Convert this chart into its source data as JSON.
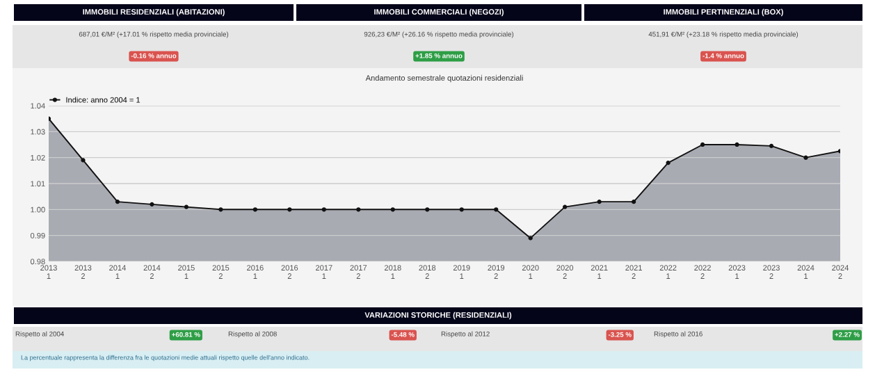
{
  "chart_data": {
    "type": "area",
    "title": "Andamento semestrale quotazioni residenziali",
    "categories": [
      "2013\n1",
      "2013\n2",
      "2014\n1",
      "2014\n2",
      "2015\n1",
      "2015\n2",
      "2016\n1",
      "2016\n2",
      "2017\n1",
      "2017\n2",
      "2018\n1",
      "2018\n2",
      "2019\n1",
      "2019\n2",
      "2020\n1",
      "2020\n2",
      "2021\n1",
      "2021\n2",
      "2022\n1",
      "2022\n2",
      "2023\n1",
      "2023\n2",
      "2024\n1",
      "2024\n2"
    ],
    "series": [
      {
        "name": "Indice: anno 2004 = 1",
        "color": "#a9abb3",
        "values": [
          1.035,
          1.019,
          1.003,
          1.002,
          1.001,
          1.0,
          1.0,
          1.0,
          1.0,
          1.0,
          1.0,
          1.0,
          1.0,
          1.0,
          0.989,
          1.001,
          1.003,
          1.003,
          1.018,
          1.025,
          1.025,
          1.0245,
          1.02,
          1.0225
        ]
      }
    ],
    "ylim": [
      0.98,
      1.04
    ],
    "yticks": [
      {
        "value": 0.98,
        "label": "0.98"
      },
      {
        "value": 0.99,
        "label": "0.99"
      },
      {
        "value": 1.0,
        "label": "1.00"
      },
      {
        "value": 1.01,
        "label": "1.01"
      },
      {
        "value": 1.02,
        "label": "1.02"
      },
      {
        "value": 1.03,
        "label": "1.03"
      },
      {
        "value": 1.04,
        "label": "1.04"
      }
    ],
    "grid": "y",
    "legend": "top left",
    "marker": "circle",
    "line_style": "solid",
    "annotations": [
      "IMMOBILI RESIDENZIALI (ABITAZIONI)",
      "687,01 €/M² (+17.01 % rispetto media provinciale)",
      "-0.16 % annuo",
      "IMMOBILI COMMERCIALI (NEGOZI)",
      "926,23 €/M² (+26.16 % rispetto media provinciale)",
      "+1.85 % annuo",
      "IMMOBILI PERTINENZIALI (BOX)",
      "451,91 €/M² (+23.18 % rispetto media provinciale)",
      "-1.4 % annuo",
      "VARIAZIONI STORICHE (RESIDENZIALI)",
      "Rispetto al 2004",
      "+60.81 %",
      "Rispetto al 2008",
      "-5.48 %",
      "Rispetto al 2012",
      "-3.25 %",
      "Rispetto al 2016",
      "+2.27 %",
      "La percentuale rappresenta la differenza fra le quotazioni medie attuali rispetto quelle dell'anno indicato."
    ]
  }
}
